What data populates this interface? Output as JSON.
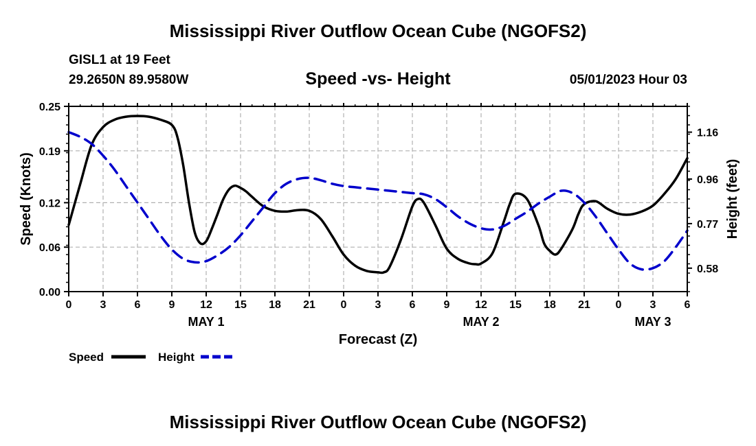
{
  "header": {
    "title": "Mississippi River Outflow Ocean Cube (NGOFS2)",
    "station": "GISL1 at 19 Feet",
    "coords": "29.2650N  89.9580W",
    "datetime": "05/01/2023 Hour 03"
  },
  "footer": {
    "title": "Mississippi River Outflow Ocean Cube (NGOFS2)"
  },
  "colors": {
    "speed": "#000000",
    "height": "#0000cc",
    "grid": "#b0b0b0"
  },
  "chart_data": {
    "type": "line",
    "title": "Speed -vs- Height",
    "xlabel": "Forecast (Z)",
    "ylabel": "Speed (Knots)",
    "y2label": "Height (feet)",
    "x_range": [
      0,
      54
    ],
    "ylim": [
      0,
      0.25
    ],
    "y2lim": [
      0.48,
      1.27
    ],
    "x_ticks": [
      0,
      3,
      6,
      9,
      12,
      15,
      18,
      21,
      24,
      27,
      30,
      33,
      36,
      39,
      42,
      45,
      48,
      51,
      54
    ],
    "x_tick_labels": [
      "0",
      "3",
      "6",
      "9",
      "12",
      "15",
      "18",
      "21",
      "0",
      "3",
      "6",
      "9",
      "12",
      "15",
      "18",
      "21",
      "0",
      "3",
      "6"
    ],
    "day_labels": [
      {
        "label": "MAY 1",
        "x": 12
      },
      {
        "label": "MAY 2",
        "x": 36
      },
      {
        "label": "MAY 3",
        "x": 51
      }
    ],
    "y_ticks": [
      0.0,
      0.06,
      0.12,
      0.19,
      0.25
    ],
    "y_tick_labels": [
      "0.00",
      "0.06",
      "0.12",
      "0.19",
      "0.25"
    ],
    "y2_ticks": [
      0.58,
      0.77,
      0.96,
      1.16
    ],
    "y2_tick_labels": [
      "0.58",
      "0.77",
      "0.96",
      "1.16"
    ],
    "grid": true,
    "legend_position": "bottom-left",
    "series": [
      {
        "name": "Speed",
        "axis": "left",
        "style": "solid",
        "x": [
          0,
          1,
          2,
          3,
          4,
          5,
          6,
          7,
          8,
          9,
          9.5,
          10,
          10.5,
          11,
          11.5,
          12,
          12.5,
          13,
          13.5,
          14,
          14.5,
          15,
          15.5,
          16,
          17,
          18,
          19,
          20,
          21,
          22,
          23,
          24,
          25,
          26,
          27,
          27.5,
          28,
          29,
          30,
          30.5,
          31,
          32,
          33,
          34,
          35,
          35.5,
          36,
          37,
          38,
          38.5,
          39,
          40,
          41,
          41.5,
          42,
          42.5,
          43,
          44,
          44.5,
          45,
          46,
          47,
          48,
          49,
          50,
          51,
          52,
          53,
          54
        ],
        "values": [
          0.09,
          0.145,
          0.198,
          0.222,
          0.232,
          0.236,
          0.237,
          0.236,
          0.232,
          0.225,
          0.208,
          0.17,
          0.12,
          0.08,
          0.065,
          0.068,
          0.085,
          0.105,
          0.125,
          0.138,
          0.143,
          0.14,
          0.135,
          0.128,
          0.115,
          0.109,
          0.108,
          0.11,
          0.109,
          0.098,
          0.075,
          0.05,
          0.035,
          0.028,
          0.026,
          0.026,
          0.033,
          0.07,
          0.115,
          0.125,
          0.12,
          0.09,
          0.058,
          0.044,
          0.038,
          0.037,
          0.038,
          0.052,
          0.095,
          0.118,
          0.132,
          0.125,
          0.09,
          0.065,
          0.055,
          0.05,
          0.058,
          0.085,
          0.105,
          0.118,
          0.122,
          0.112,
          0.105,
          0.104,
          0.108,
          0.116,
          0.132,
          0.152,
          0.18
        ]
      },
      {
        "name": "Height",
        "axis": "right",
        "style": "dashed",
        "x": [
          0,
          1,
          2,
          3,
          4,
          5,
          6,
          7,
          8,
          9,
          10,
          11,
          12,
          13,
          14,
          15,
          16,
          17,
          18,
          19,
          20,
          21,
          22,
          23,
          24,
          25,
          26,
          27,
          28,
          29,
          30,
          31,
          32,
          33,
          34,
          35,
          36,
          37,
          38,
          39,
          40,
          41,
          42,
          43,
          44,
          45,
          46,
          47,
          48,
          49,
          50,
          51,
          52,
          53,
          54
        ],
        "values": [
          1.16,
          1.14,
          1.11,
          1.06,
          1.0,
          0.93,
          0.86,
          0.79,
          0.72,
          0.66,
          0.62,
          0.605,
          0.61,
          0.635,
          0.67,
          0.72,
          0.78,
          0.84,
          0.9,
          0.94,
          0.96,
          0.965,
          0.955,
          0.94,
          0.93,
          0.925,
          0.92,
          0.915,
          0.91,
          0.905,
          0.9,
          0.895,
          0.875,
          0.84,
          0.8,
          0.77,
          0.75,
          0.745,
          0.76,
          0.79,
          0.82,
          0.855,
          0.885,
          0.91,
          0.9,
          0.86,
          0.8,
          0.73,
          0.66,
          0.6,
          0.575,
          0.58,
          0.61,
          0.67,
          0.74
        ]
      }
    ]
  }
}
